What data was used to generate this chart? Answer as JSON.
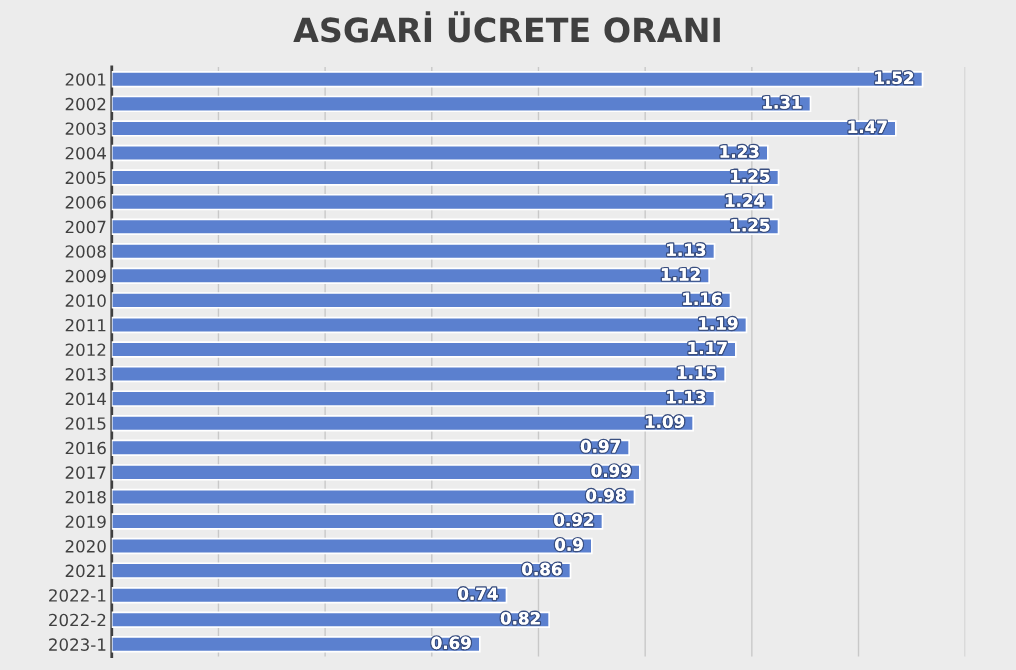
{
  "chart_data": {
    "type": "bar",
    "orientation": "horizontal",
    "title": "ASGARİ ÜCRETE ORANI",
    "categories": [
      "2001",
      "2002",
      "2003",
      "2004",
      "2005",
      "2006",
      "2007",
      "2008",
      "2009",
      "2010",
      "2011",
      "2012",
      "2013",
      "2014",
      "2015",
      "2016",
      "2017",
      "2018",
      "2019",
      "2020",
      "2021",
      "2022-1",
      "2022-2",
      "2023-1"
    ],
    "values": [
      1.52,
      1.31,
      1.47,
      1.23,
      1.25,
      1.24,
      1.25,
      1.13,
      1.12,
      1.16,
      1.19,
      1.17,
      1.15,
      1.13,
      1.09,
      0.97,
      0.99,
      0.98,
      0.92,
      0.9,
      0.86,
      0.74,
      0.82,
      0.69
    ],
    "color": "#5b80cf",
    "data_labels": true,
    "xlim": [
      0,
      1.6
    ],
    "xticks": [
      {
        "value": 0.2,
        "label": null
      },
      {
        "value": 0.4,
        "label": null
      },
      {
        "value": 0.6,
        "label": null
      },
      {
        "value": 0.8,
        "label": null
      },
      {
        "value": 1.0,
        "label": null
      },
      {
        "value": 1.2,
        "label": null
      },
      {
        "value": 1.4,
        "label": null
      },
      {
        "value": 1.6,
        "label": null
      }
    ],
    "tick_labels": "y",
    "grid": "x"
  }
}
